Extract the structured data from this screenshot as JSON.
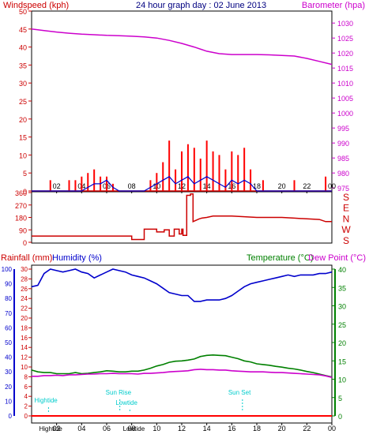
{
  "chart_data": [
    {
      "type": "line",
      "panel": "wind_barometer",
      "title": "24 hour graph day : 02 June 2013",
      "left_axis_label": "Windspeed (kph)",
      "right_axis_label": "Barometer (hpa)",
      "left_ticks": [
        "0",
        "5",
        "10",
        "15",
        "20",
        "25",
        "30",
        "35",
        "40",
        "45",
        "50"
      ],
      "right_ticks": [
        "975",
        "980",
        "985",
        "990",
        "995",
        "1000",
        "1005",
        "1010",
        "1015",
        "1020",
        "1025",
        "1030"
      ],
      "ylim_left": [
        0,
        50
      ],
      "ylim_right": [
        974,
        1034
      ],
      "x_ticks": [
        "02",
        "04",
        "06",
        "08",
        "10",
        "12",
        "14",
        "16",
        "18",
        "20",
        "22",
        "00"
      ],
      "xlim": [
        0,
        24
      ],
      "colors": {
        "gust": "#ff0000",
        "wind": "#0000cc",
        "barometer": "#cc00cc",
        "axis": "#cc0000"
      },
      "series": [
        {
          "name": "Barometer (hpa)",
          "x": [
            0,
            1,
            2,
            3,
            4,
            5,
            6,
            7,
            8,
            9,
            10,
            11,
            12,
            13,
            14,
            15,
            16,
            17,
            18,
            19,
            20,
            21,
            22,
            23,
            24
          ],
          "values": [
            1028.0,
            1027.5,
            1027.0,
            1026.6,
            1026.3,
            1026.1,
            1025.9,
            1025.8,
            1025.6,
            1025.4,
            1025.0,
            1024.2,
            1023.2,
            1022.0,
            1020.6,
            1019.8,
            1019.5,
            1019.5,
            1019.5,
            1019.4,
            1019.2,
            1019.0,
            1018.2,
            1017.2,
            1016.2
          ]
        },
        {
          "name": "Wind gust (kph)",
          "x": [
            0.0,
            0.5,
            1.0,
            1.5,
            2.0,
            2.5,
            3.0,
            3.5,
            4.0,
            4.5,
            5.0,
            5.5,
            6.0,
            6.5,
            7.0,
            7.5,
            8.0,
            8.5,
            9.0,
            9.5,
            10.0,
            10.5,
            11.0,
            11.5,
            12.0,
            12.5,
            13.0,
            13.5,
            14.0,
            14.5,
            15.0,
            15.5,
            16.0,
            16.5,
            17.0,
            17.5,
            18.0,
            18.5,
            19.0,
            19.5,
            20.0,
            20.5,
            21.0,
            21.5,
            22.0,
            22.5,
            23.0,
            23.5,
            24.0
          ],
          "values": [
            0,
            0,
            0,
            3,
            0,
            0,
            3,
            3,
            4,
            5,
            6,
            4,
            4,
            2,
            0,
            0,
            0,
            0,
            0,
            3,
            5,
            8,
            14,
            6,
            11,
            13,
            12,
            9,
            14,
            11,
            10,
            6,
            11,
            10,
            12,
            6,
            0,
            3,
            0,
            0,
            0,
            0,
            3,
            0,
            0,
            0,
            0,
            4,
            0
          ]
        },
        {
          "name": "Wind speed (kph)",
          "x": [
            0.0,
            1.0,
            2.0,
            3.0,
            4.0,
            4.5,
            5.0,
            5.5,
            6.0,
            6.5,
            7.0,
            8.0,
            9.0,
            9.5,
            10.0,
            10.5,
            11.0,
            11.5,
            12.0,
            12.5,
            13.0,
            13.5,
            14.0,
            14.5,
            15.0,
            15.5,
            16.0,
            16.5,
            17.0,
            17.5,
            18.0,
            19.0,
            20.0,
            21.0,
            22.0,
            23.0,
            24.0
          ],
          "values": [
            0,
            0,
            0,
            0,
            0,
            1,
            2,
            2,
            3,
            1,
            0,
            0,
            0,
            1,
            2,
            3,
            4,
            2,
            3,
            4,
            2,
            3,
            4,
            3,
            2,
            1,
            3,
            2,
            3,
            2,
            0,
            0,
            0,
            0,
            0,
            0,
            0
          ]
        }
      ]
    },
    {
      "type": "line",
      "panel": "wind_direction",
      "left_ticks": [
        "0",
        "90",
        "180",
        "270",
        "360"
      ],
      "right_ticks": [
        "S",
        "E",
        "N",
        "W",
        "S"
      ],
      "ylim": [
        0,
        360
      ],
      "xlim": [
        0,
        24
      ],
      "colors": {
        "line": "#cc0000"
      },
      "series": [
        {
          "name": "Wind direction (deg)",
          "x": [
            0,
            8.0,
            8.0,
            9.0,
            9.0,
            10.0,
            10.0,
            10.6,
            10.6,
            11.0,
            11.0,
            11.4,
            11.4,
            11.8,
            11.8,
            12.0,
            12.0,
            12.1,
            12.1,
            12.4,
            12.4,
            12.7,
            12.7,
            12.9,
            12.9,
            13.4,
            13.6,
            14.0,
            14.5,
            15.0,
            16.0,
            17.0,
            18.0,
            19.0,
            20.0,
            21.0,
            22.0,
            23.0,
            23.5,
            24.0
          ],
          "values": [
            45,
            45,
            20,
            20,
            95,
            95,
            75,
            75,
            90,
            90,
            45,
            45,
            95,
            95,
            60,
            60,
            95,
            95,
            50,
            50,
            340,
            340,
            350,
            350,
            150,
            170,
            175,
            180,
            190,
            190,
            190,
            185,
            180,
            180,
            180,
            175,
            170,
            165,
            150,
            150
          ]
        }
      ]
    },
    {
      "type": "line",
      "panel": "rain_humidity_temperature",
      "left_axis_label_rain": "Rainfall (mm)",
      "left_axis_label_humidity": "Humidity (%)",
      "right_axis_label_temp": "Temperature (°C)",
      "right_axis_label_dew": "Dew Point (°C)",
      "rain_ticks": [
        "0",
        "2",
        "4",
        "6",
        "8",
        "10",
        "12",
        "14",
        "16",
        "18",
        "20",
        "22",
        "24",
        "26",
        "28",
        "30"
      ],
      "humidity_ticks": [
        "0",
        "10",
        "20",
        "30",
        "40",
        "50",
        "60",
        "70",
        "80",
        "90",
        "100"
      ],
      "temp_ticks": [
        "0",
        "5",
        "10",
        "15",
        "20",
        "25",
        "30",
        "35",
        "40"
      ],
      "ylim_rain": [
        0,
        30
      ],
      "ylim_humidity": [
        0,
        100
      ],
      "ylim_temp": [
        0,
        40
      ],
      "x_ticks": [
        "02",
        "04",
        "06",
        "08",
        "10",
        "12",
        "14",
        "16",
        "18",
        "20",
        "22",
        "00"
      ],
      "colors": {
        "rain": "#ff0000",
        "humidity": "#0000cc",
        "temperature": "#008000",
        "dewpoint": "#cc00cc",
        "tide": "#00cccc"
      },
      "annotations": [
        "Hightide",
        "Sun Rise",
        "Lowtide",
        "Sun Set"
      ],
      "bottom_tide_labels": [
        "Hightide",
        "Lowtide"
      ],
      "series": [
        {
          "name": "Humidity (%)",
          "x": [
            0.0,
            0.5,
            1.0,
            1.5,
            2.0,
            2.5,
            3.0,
            3.5,
            4.0,
            4.5,
            5.0,
            5.5,
            6.0,
            6.5,
            7.0,
            7.5,
            8.0,
            8.5,
            9.0,
            9.5,
            10.0,
            10.5,
            11.0,
            11.5,
            12.0,
            12.5,
            13.0,
            13.5,
            14.0,
            14.5,
            15.0,
            15.5,
            16.0,
            16.5,
            17.0,
            17.5,
            18.0,
            18.5,
            19.0,
            19.5,
            20.0,
            20.5,
            21.0,
            21.5,
            22.0,
            22.5,
            23.0,
            23.5,
            24.0
          ],
          "values": [
            88,
            89,
            97,
            100,
            99,
            98,
            99,
            100,
            98,
            97,
            94,
            96,
            98,
            100,
            99,
            98,
            96,
            95,
            94,
            92,
            90,
            87,
            84,
            83,
            82,
            82,
            78,
            78,
            79,
            79,
            79,
            80,
            82,
            85,
            88,
            90,
            91,
            92,
            93,
            94,
            95,
            96,
            95,
            96,
            96,
            96,
            97,
            97,
            98
          ]
        },
        {
          "name": "Temperature (°C)",
          "x": [
            0.0,
            0.5,
            1.0,
            1.5,
            2.0,
            2.5,
            3.0,
            3.5,
            4.0,
            4.5,
            5.0,
            5.5,
            6.0,
            6.5,
            7.0,
            7.5,
            8.0,
            8.5,
            9.0,
            9.5,
            10.0,
            10.5,
            11.0,
            11.5,
            12.0,
            12.5,
            13.0,
            13.5,
            14.0,
            14.5,
            15.0,
            15.5,
            16.0,
            16.5,
            17.0,
            17.5,
            18.0,
            18.5,
            19.0,
            19.5,
            20.0,
            20.5,
            21.0,
            21.5,
            22.0,
            22.5,
            23.0,
            23.5,
            24.0
          ],
          "values": [
            12.5,
            12.0,
            11.8,
            11.8,
            11.5,
            11.5,
            11.5,
            11.8,
            11.5,
            11.6,
            11.8,
            12.0,
            12.3,
            12.2,
            12.0,
            12.0,
            12.2,
            12.2,
            12.5,
            13.0,
            13.6,
            14.0,
            14.6,
            14.9,
            15.0,
            15.2,
            15.5,
            16.2,
            16.5,
            16.6,
            16.5,
            16.4,
            16.0,
            15.6,
            15.0,
            14.7,
            14.2,
            14.0,
            13.8,
            13.5,
            13.3,
            13.0,
            12.8,
            12.5,
            12.1,
            11.8,
            11.4,
            11.0,
            10.6
          ]
        },
        {
          "name": "Dew Point (°C)",
          "x": [
            0.0,
            0.5,
            1.0,
            1.5,
            2.0,
            2.5,
            3.0,
            3.5,
            4.0,
            4.5,
            5.0,
            5.5,
            6.0,
            6.5,
            7.0,
            7.5,
            8.0,
            8.5,
            9.0,
            9.5,
            10.0,
            10.5,
            11.0,
            11.5,
            12.0,
            12.5,
            13.0,
            13.5,
            14.0,
            14.5,
            15.0,
            15.5,
            16.0,
            16.5,
            17.0,
            17.5,
            18.0,
            18.5,
            19.0,
            19.5,
            20.0,
            20.5,
            21.0,
            21.5,
            22.0,
            22.5,
            23.0,
            23.5,
            24.0
          ],
          "values": [
            10.8,
            10.8,
            11.0,
            11.0,
            11.1,
            11.0,
            11.2,
            11.2,
            11.3,
            11.4,
            11.4,
            11.5,
            11.5,
            11.6,
            11.5,
            11.5,
            11.5,
            11.4,
            11.6,
            11.6,
            11.7,
            11.8,
            12.0,
            12.1,
            12.2,
            12.3,
            12.6,
            12.7,
            12.6,
            12.6,
            12.5,
            12.5,
            12.3,
            12.2,
            12.1,
            12.0,
            12.0,
            12.0,
            11.9,
            11.8,
            11.8,
            11.7,
            11.6,
            11.5,
            11.4,
            11.3,
            11.2,
            10.9,
            10.5
          ]
        },
        {
          "name": "Rainfall (mm)",
          "x": [
            0,
            24
          ],
          "values": [
            0,
            0
          ]
        }
      ]
    }
  ]
}
